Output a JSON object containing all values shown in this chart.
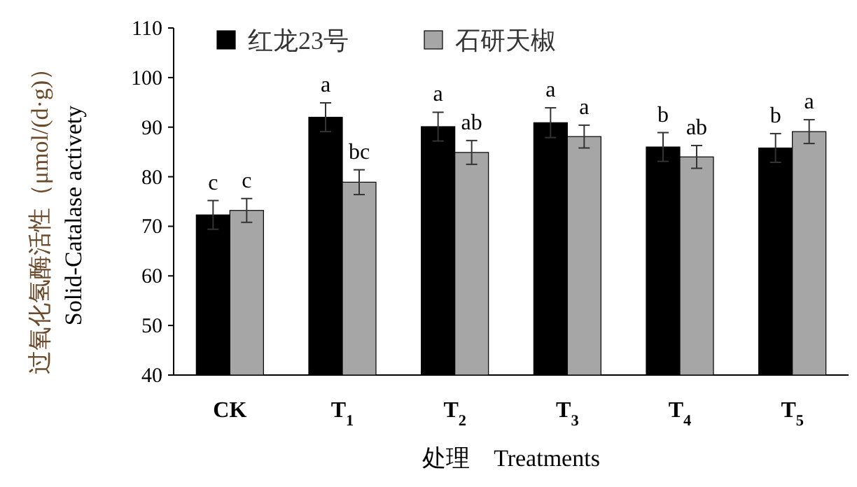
{
  "chart_data": {
    "type": "bar",
    "categories": [
      "CK",
      "T$_{1}$",
      "T$_{2}$",
      "T$_{3}$",
      "T$_{4}$",
      "T$_{5}$"
    ],
    "series": [
      {
        "name": "红龙23号",
        "color": "#000000",
        "values": [
          72.3,
          92.0,
          90.1,
          90.9,
          86.0,
          85.8
        ],
        "errors": [
          2.9,
          2.9,
          2.9,
          3.0,
          2.9,
          2.9
        ],
        "value_labels": [
          "c",
          "a",
          "a",
          "a",
          "b",
          "b"
        ]
      },
      {
        "name": "石研天椒",
        "color": "#a6a6a6",
        "values": [
          73.2,
          78.9,
          84.9,
          88.1,
          84.0,
          89.1
        ],
        "errors": [
          2.4,
          2.5,
          2.4,
          2.3,
          2.3,
          2.4
        ],
        "value_labels": [
          "c",
          "bc",
          "ab",
          "a",
          "ab",
          "a"
        ]
      }
    ],
    "ylabel": "过氧化氢酶活性（μmol/(d·g)）\nSolid-Catalase activety",
    "xlabel": "处理　Treatments",
    "ylim": [
      40,
      110
    ],
    "yticks": [
      40,
      50,
      60,
      70,
      80,
      90,
      100,
      110
    ],
    "legend": "top left"
  }
}
